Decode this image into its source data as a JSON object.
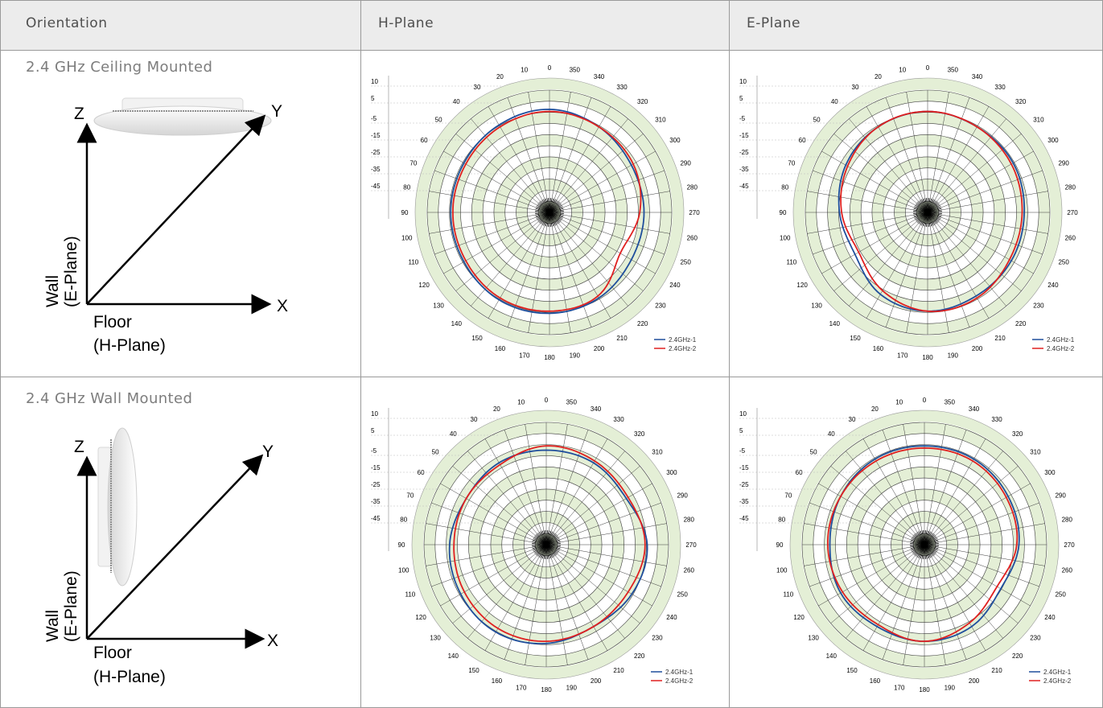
{
  "table": {
    "headers": [
      "Orientation",
      "H-Plane",
      "E-Plane"
    ],
    "rows": [
      {
        "label": "2.4 GHz Ceiling Mounted",
        "diagram": {
          "axes": [
            "Z",
            "Y",
            "X"
          ],
          "wall_label": [
            "Wall",
            "(E-Plane)"
          ],
          "floor_label": [
            "Floor",
            "(H-Plane)"
          ],
          "device": "ceiling-mounted-ap-image"
        }
      },
      {
        "label": "2.4 GHz Wall Mounted",
        "diagram": {
          "axes": [
            "Z",
            "Y",
            "X"
          ],
          "wall_label": [
            "Wall",
            "(E-Plane)"
          ],
          "floor_label": [
            "Floor",
            "(H-Plane)"
          ],
          "device": "wall-mounted-ap-image"
        }
      }
    ]
  },
  "colors": {
    "series1": "#1f4e9c",
    "series2": "#e02020",
    "ring_fill": "#e4efd6",
    "grid": "#3a3a3a",
    "border": "#9a9a9a"
  },
  "chart_data": [
    {
      "type": "polar",
      "panel": "2.4 GHz Ceiling Mounted / H-Plane",
      "r_ticks": [
        10,
        5,
        -5,
        -15,
        -25,
        -35,
        -45
      ],
      "r_range": [
        -45,
        10
      ],
      "angle_ticks": [
        0,
        10,
        20,
        30,
        40,
        50,
        60,
        70,
        80,
        90,
        100,
        110,
        120,
        130,
        140,
        150,
        160,
        170,
        180,
        190,
        200,
        210,
        220,
        230,
        240,
        250,
        260,
        270,
        280,
        290,
        300,
        310,
        320,
        330,
        340,
        350
      ],
      "legend_position": "bottom-right",
      "series": [
        {
          "name": "2.4GHz-1",
          "theta": [
            0,
            30,
            60,
            90,
            120,
            150,
            180,
            210,
            240,
            270,
            300,
            330
          ],
          "r": [
            1,
            0,
            -1,
            -1,
            -1,
            0,
            0,
            -1,
            -3,
            -3,
            -3,
            -1
          ]
        },
        {
          "name": "2.4GHz-2",
          "theta": [
            0,
            30,
            60,
            90,
            120,
            150,
            180,
            210,
            240,
            270,
            300,
            330
          ],
          "r": [
            0,
            -1,
            -2,
            -2,
            -2,
            -1,
            -1,
            -2,
            -9,
            -5,
            -2,
            -1
          ]
        }
      ]
    },
    {
      "type": "polar",
      "panel": "2.4 GHz Ceiling Mounted / E-Plane",
      "r_ticks": [
        10,
        5,
        -5,
        -15,
        -25,
        -35,
        -45
      ],
      "r_range": [
        -45,
        10
      ],
      "angle_ticks": [
        0,
        10,
        20,
        30,
        40,
        50,
        60,
        70,
        80,
        90,
        100,
        110,
        120,
        130,
        140,
        150,
        160,
        170,
        180,
        190,
        200,
        210,
        220,
        230,
        240,
        250,
        260,
        270,
        280,
        290,
        300,
        310,
        320,
        330,
        340,
        350
      ],
      "legend_position": "bottom-right",
      "series": [
        {
          "name": "2.4GHz-1",
          "theta": [
            0,
            30,
            60,
            90,
            120,
            150,
            180,
            210,
            240,
            270,
            300,
            330
          ],
          "r": [
            0,
            -1,
            -3,
            -6,
            -8,
            -3,
            -1,
            -2,
            -2,
            -2,
            -1,
            -1
          ]
        },
        {
          "name": "2.4GHz-2",
          "theta": [
            0,
            30,
            60,
            90,
            120,
            150,
            180,
            210,
            240,
            270,
            300,
            330
          ],
          "r": [
            0,
            -1,
            -4,
            -7,
            -10,
            -5,
            -1,
            -1,
            -3,
            -3,
            -2,
            -1
          ]
        }
      ]
    },
    {
      "type": "polar",
      "panel": "2.4 GHz Wall Mounted / H-Plane",
      "r_ticks": [
        10,
        5,
        -5,
        -15,
        -25,
        -35,
        -45
      ],
      "r_range": [
        -45,
        10
      ],
      "angle_ticks": [
        0,
        10,
        20,
        30,
        40,
        50,
        60,
        70,
        80,
        90,
        100,
        110,
        120,
        130,
        140,
        150,
        160,
        170,
        180,
        190,
        200,
        210,
        220,
        230,
        240,
        250,
        260,
        270,
        280,
        290,
        300,
        310,
        320,
        330,
        340,
        350
      ],
      "legend_position": "bottom-right",
      "series": [
        {
          "name": "2.4GHz-1",
          "theta": [
            0,
            30,
            60,
            90,
            120,
            150,
            180,
            210,
            240,
            270,
            300,
            330
          ],
          "r": [
            -3,
            -3,
            -4,
            -2,
            -1,
            0,
            -1,
            -3,
            -1,
            0,
            -4,
            -3
          ]
        },
        {
          "name": "2.4GHz-2",
          "theta": [
            0,
            30,
            60,
            90,
            120,
            150,
            180,
            210,
            240,
            270,
            300,
            330
          ],
          "r": [
            -1,
            -4,
            -4,
            -4,
            -3,
            -2,
            -2,
            -3,
            -3,
            -1,
            -3,
            -2
          ]
        }
      ]
    },
    {
      "type": "polar",
      "panel": "2.4 GHz Wall Mounted / E-Plane",
      "r_ticks": [
        10,
        5,
        -5,
        -15,
        -25,
        -35,
        -45
      ],
      "r_range": [
        -45,
        10
      ],
      "angle_ticks": [
        0,
        10,
        20,
        30,
        40,
        50,
        60,
        70,
        80,
        90,
        100,
        110,
        120,
        130,
        140,
        150,
        160,
        170,
        180,
        190,
        200,
        210,
        220,
        230,
        240,
        250,
        260,
        270,
        280,
        290,
        300,
        310,
        320,
        330,
        340,
        350
      ],
      "legend_position": "bottom-right",
      "series": [
        {
          "name": "2.4GHz-1",
          "theta": [
            0,
            30,
            60,
            90,
            120,
            150,
            180,
            210,
            240,
            270,
            300,
            330
          ],
          "r": [
            -1,
            -1,
            -2,
            -3,
            -2,
            -3,
            -2,
            -3,
            -6,
            -3,
            -2,
            -1
          ]
        },
        {
          "name": "2.4GHz-2",
          "theta": [
            0,
            30,
            60,
            90,
            120,
            150,
            180,
            210,
            240,
            270,
            300,
            330
          ],
          "r": [
            -2,
            -2,
            -2,
            -2,
            -3,
            -4,
            -2,
            -5,
            -8,
            -4,
            -3,
            -2
          ]
        }
      ]
    }
  ]
}
